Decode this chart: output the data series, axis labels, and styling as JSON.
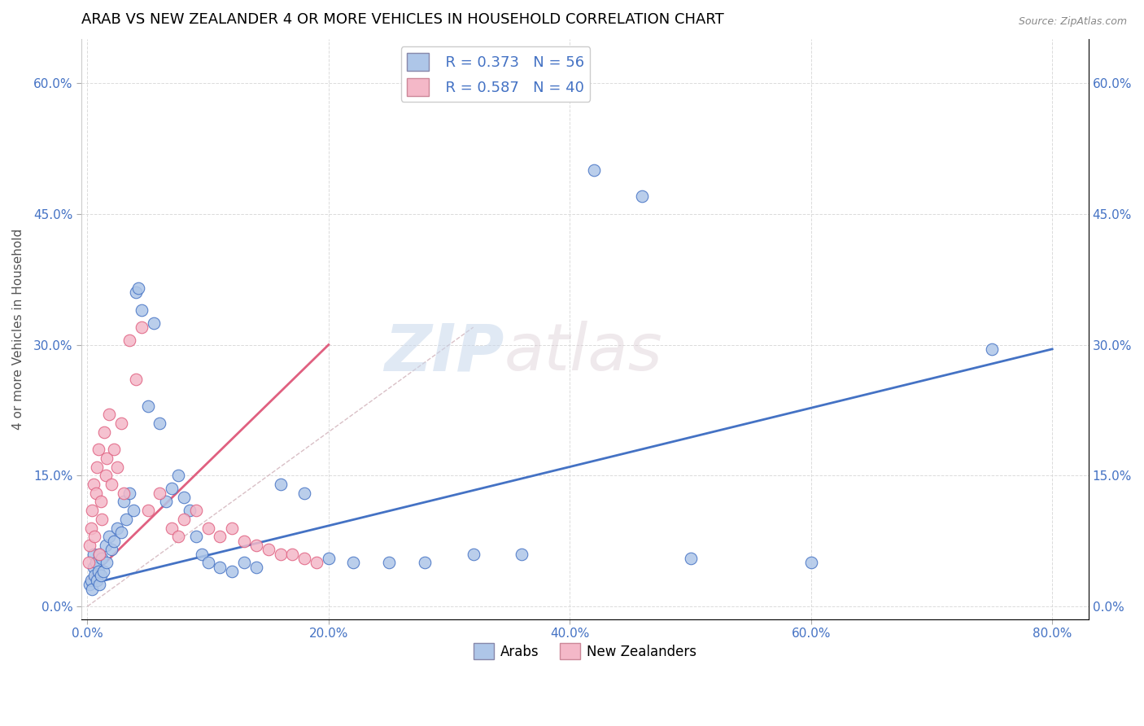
{
  "title": "ARAB VS NEW ZEALANDER 4 OR MORE VEHICLES IN HOUSEHOLD CORRELATION CHART",
  "source": "Source: ZipAtlas.com",
  "xlabel_tick_vals": [
    0,
    20,
    40,
    60,
    80
  ],
  "ylabel_tick_vals": [
    0,
    15,
    30,
    45,
    60
  ],
  "ylabel_label": "4 or more Vehicles in Household",
  "xlim": [
    -0.5,
    83
  ],
  "ylim": [
    -1.5,
    65
  ],
  "watermark_zip": "ZIP",
  "watermark_atlas": "atlas",
  "legend_R_arab": "R = 0.373",
  "legend_N_arab": "N = 56",
  "legend_R_nz": "R = 0.587",
  "legend_N_nz": "N = 40",
  "arab_color": "#aec6e8",
  "nz_color": "#f4b8c8",
  "arab_line_color": "#4472c4",
  "nz_line_color": "#e06080",
  "diag_line_color": "#d0b0b8",
  "arab_points_x": [
    0.2,
    0.3,
    0.4,
    0.5,
    0.5,
    0.6,
    0.7,
    0.8,
    0.9,
    1.0,
    1.0,
    1.1,
    1.2,
    1.3,
    1.5,
    1.6,
    1.8,
    2.0,
    2.2,
    2.5,
    2.8,
    3.0,
    3.2,
    3.5,
    3.8,
    4.0,
    4.2,
    4.5,
    5.0,
    5.5,
    6.0,
    6.5,
    7.0,
    7.5,
    8.0,
    8.5,
    9.0,
    9.5,
    10.0,
    11.0,
    12.0,
    13.0,
    14.0,
    16.0,
    18.0,
    20.0,
    22.0,
    25.0,
    28.0,
    32.0,
    36.0,
    42.0,
    46.0,
    50.0,
    60.0,
    75.0
  ],
  "arab_points_y": [
    2.5,
    3.0,
    2.0,
    4.5,
    6.0,
    3.5,
    5.0,
    3.0,
    4.0,
    2.5,
    6.0,
    3.5,
    5.5,
    4.0,
    7.0,
    5.0,
    8.0,
    6.5,
    7.5,
    9.0,
    8.5,
    12.0,
    10.0,
    13.0,
    11.0,
    36.0,
    36.5,
    34.0,
    23.0,
    32.5,
    21.0,
    12.0,
    13.5,
    15.0,
    12.5,
    11.0,
    8.0,
    6.0,
    5.0,
    4.5,
    4.0,
    5.0,
    4.5,
    14.0,
    13.0,
    5.5,
    5.0,
    5.0,
    5.0,
    6.0,
    6.0,
    50.0,
    47.0,
    5.5,
    5.0,
    29.5
  ],
  "nz_points_x": [
    0.1,
    0.2,
    0.3,
    0.4,
    0.5,
    0.6,
    0.7,
    0.8,
    0.9,
    1.0,
    1.1,
    1.2,
    1.4,
    1.5,
    1.6,
    1.8,
    2.0,
    2.2,
    2.5,
    2.8,
    3.0,
    3.5,
    4.0,
    4.5,
    5.0,
    6.0,
    7.0,
    7.5,
    8.0,
    9.0,
    10.0,
    11.0,
    12.0,
    13.0,
    14.0,
    15.0,
    16.0,
    17.0,
    18.0,
    19.0
  ],
  "nz_points_y": [
    5.0,
    7.0,
    9.0,
    11.0,
    14.0,
    8.0,
    13.0,
    16.0,
    18.0,
    6.0,
    12.0,
    10.0,
    20.0,
    15.0,
    17.0,
    22.0,
    14.0,
    18.0,
    16.0,
    21.0,
    13.0,
    30.5,
    26.0,
    32.0,
    11.0,
    13.0,
    9.0,
    8.0,
    10.0,
    11.0,
    9.0,
    8.0,
    9.0,
    7.5,
    7.0,
    6.5,
    6.0,
    6.0,
    5.5,
    5.0
  ],
  "arab_line_x": [
    0,
    80
  ],
  "arab_line_y": [
    2.5,
    29.5
  ],
  "nz_line_x": [
    0,
    20
  ],
  "nz_line_y": [
    3.0,
    30.0
  ],
  "diag_line_x": [
    0,
    32
  ],
  "diag_line_y": [
    0,
    32
  ]
}
